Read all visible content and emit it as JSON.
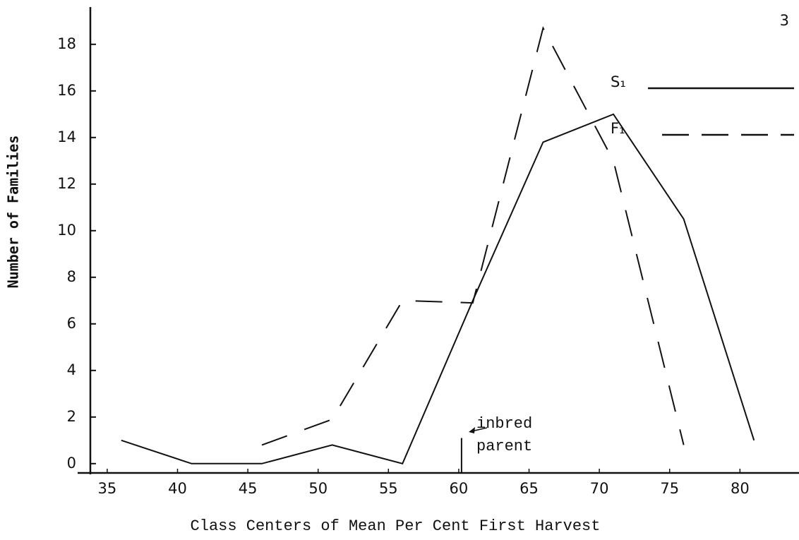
{
  "chart_data": {
    "type": "line",
    "page_number": "3",
    "xlabel": "Class Centers of Mean Per Cent First Harvest",
    "ylabel": "Number of Families",
    "xlim": [
      33.8,
      84.2
    ],
    "ylim": [
      -0.4,
      19.6
    ],
    "xticks": [
      35,
      40,
      45,
      50,
      55,
      60,
      65,
      70,
      75,
      80
    ],
    "yticks": [
      0,
      2,
      4,
      6,
      8,
      10,
      12,
      14,
      16,
      18
    ],
    "legend": "upper right",
    "series": [
      {
        "name": "S₁",
        "color": "#111111",
        "dash": false,
        "x": [
          36,
          41,
          46,
          51,
          56,
          61,
          66,
          71,
          76,
          81
        ],
        "values": [
          1,
          0,
          0,
          0.8,
          0,
          7,
          13.8,
          15,
          10.5,
          1
        ]
      },
      {
        "name": "F₁",
        "color": "#111111",
        "dash": true,
        "x": [
          46,
          51,
          56,
          61,
          66,
          71,
          76
        ],
        "values": [
          0.8,
          1.9,
          7,
          6.9,
          18.7,
          13,
          0.8
        ]
      }
    ],
    "annotation": {
      "lines": [
        "inbred",
        "parent"
      ],
      "x": 60.2,
      "value": 1.1
    }
  }
}
